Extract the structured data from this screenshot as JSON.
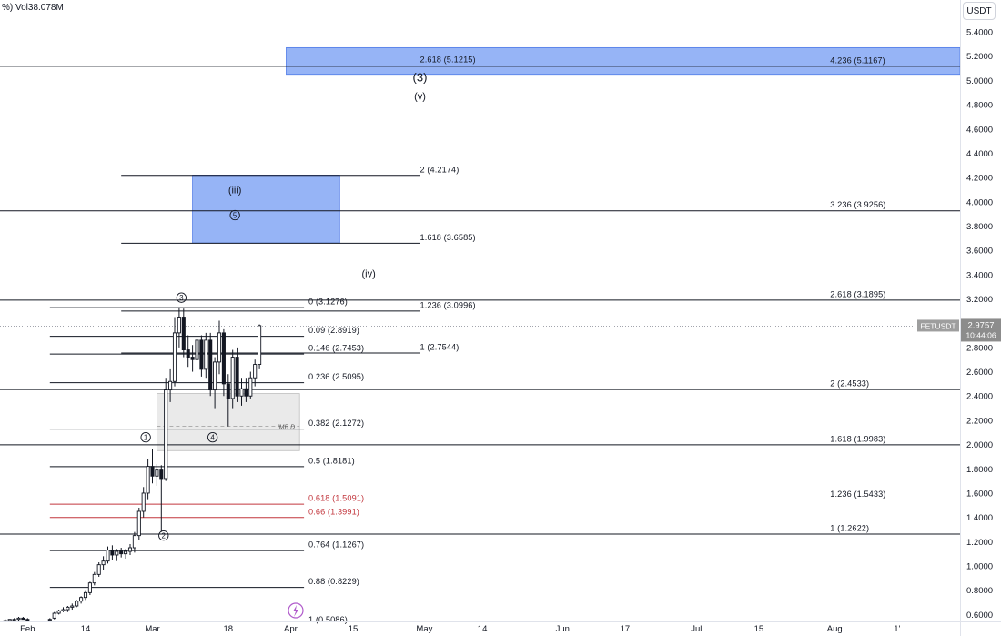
{
  "header": {
    "volume": "%) Vol38.078M",
    "currency": "USDT"
  },
  "colors": {
    "candle": "#131722",
    "line": "#131722",
    "red_line": "#c2363d",
    "blue_zone": "#6e97f2",
    "gray_zone": "#d9d9d9",
    "price_label_bg": "#8c8c8c",
    "axis_text": "#131722"
  },
  "chart_data": {
    "type": "candlestick",
    "symbol": "FETUSDT",
    "last_price": "2.9757",
    "countdown": "10:44:06",
    "ylim": [
      0.55,
      5.42
    ],
    "y_ticks": [
      "5.4000",
      "5.2000",
      "5.0000",
      "4.8000",
      "4.6000",
      "4.4000",
      "4.2000",
      "4.0000",
      "3.8000",
      "3.6000",
      "3.4000",
      "3.2000",
      "3.0000",
      "2.8000",
      "2.6000",
      "2.4000",
      "2.2000",
      "2.0000",
      "1.8000",
      "1.6000",
      "1.4000",
      "1.2000",
      "1.0000",
      "0.8000",
      "0.6000"
    ],
    "x_ticks": [
      {
        "day": 4,
        "label": "Feb"
      },
      {
        "day": 17,
        "label": "14"
      },
      {
        "day": 32,
        "label": "Mar"
      },
      {
        "day": 49,
        "label": "18"
      },
      {
        "day": 63,
        "label": "Apr"
      },
      {
        "day": 77,
        "label": "15"
      },
      {
        "day": 93,
        "label": "May"
      },
      {
        "day": 106,
        "label": "14"
      },
      {
        "day": 124,
        "label": "Jun"
      },
      {
        "day": 138,
        "label": "17"
      },
      {
        "day": 154,
        "label": "Jul"
      },
      {
        "day": 168,
        "label": "15"
      },
      {
        "day": 185,
        "label": "Aug"
      },
      {
        "day": 199,
        "label": "1'"
      }
    ],
    "candles": [
      [
        -1,
        0.55,
        0.56,
        0.54,
        0.55
      ],
      [
        0,
        0.55,
        0.56,
        0.54,
        0.56
      ],
      [
        1,
        0.56,
        0.57,
        0.55,
        0.56
      ],
      [
        2,
        0.56,
        0.58,
        0.55,
        0.57
      ],
      [
        3,
        0.57,
        0.58,
        0.56,
        0.56
      ],
      [
        4,
        0.56,
        0.57,
        0.54,
        0.55
      ],
      [
        9,
        0.56,
        0.57,
        0.55,
        0.56
      ],
      [
        10,
        0.57,
        0.62,
        0.56,
        0.61
      ],
      [
        11,
        0.61,
        0.64,
        0.6,
        0.63
      ],
      [
        12,
        0.63,
        0.66,
        0.62,
        0.64
      ],
      [
        13,
        0.64,
        0.67,
        0.62,
        0.66
      ],
      [
        14,
        0.66,
        0.69,
        0.64,
        0.67
      ],
      [
        15,
        0.67,
        0.72,
        0.66,
        0.71
      ],
      [
        16,
        0.71,
        0.75,
        0.69,
        0.74
      ],
      [
        17,
        0.74,
        0.8,
        0.72,
        0.78
      ],
      [
        18,
        0.78,
        0.87,
        0.76,
        0.86
      ],
      [
        19,
        0.86,
        0.95,
        0.84,
        0.93
      ],
      [
        20,
        0.93,
        1.03,
        0.91,
        1.01
      ],
      [
        21,
        1.01,
        1.08,
        0.97,
        1.04
      ],
      [
        22,
        1.04,
        1.16,
        1.02,
        1.13
      ],
      [
        23,
        1.13,
        1.17,
        1.05,
        1.09
      ],
      [
        24,
        1.09,
        1.14,
        1.04,
        1.12
      ],
      [
        25,
        1.12,
        1.15,
        1.07,
        1.1
      ],
      [
        26,
        1.1,
        1.14,
        1.06,
        1.12
      ],
      [
        27,
        1.12,
        1.18,
        1.09,
        1.15
      ],
      [
        28,
        1.15,
        1.28,
        1.11,
        1.25
      ],
      [
        29,
        1.25,
        1.48,
        1.21,
        1.45
      ],
      [
        30,
        1.45,
        1.65,
        1.4,
        1.6
      ],
      [
        31,
        1.6,
        1.88,
        1.55,
        1.82
      ],
      [
        32,
        1.82,
        1.96,
        1.68,
        1.74
      ],
      [
        33,
        1.74,
        1.84,
        1.66,
        1.79
      ],
      [
        34,
        1.79,
        1.83,
        1.28,
        1.72
      ],
      [
        35,
        1.72,
        2.55,
        1.7,
        2.45
      ],
      [
        36,
        2.45,
        2.62,
        2.35,
        2.52
      ],
      [
        37,
        2.52,
        3.05,
        2.48,
        2.92
      ],
      [
        38,
        2.92,
        3.13,
        2.8,
        3.05
      ],
      [
        39,
        3.05,
        3.12,
        2.72,
        2.78
      ],
      [
        40,
        2.78,
        2.9,
        2.64,
        2.72
      ],
      [
        41,
        2.72,
        2.82,
        2.6,
        2.7
      ],
      [
        42,
        2.7,
        2.92,
        2.62,
        2.86
      ],
      [
        43,
        2.86,
        2.9,
        2.56,
        2.62
      ],
      [
        44,
        2.62,
        2.92,
        2.55,
        2.86
      ],
      [
        45,
        2.86,
        2.92,
        2.4,
        2.45
      ],
      [
        46,
        2.45,
        2.72,
        2.3,
        2.68
      ],
      [
        47,
        2.68,
        3.02,
        2.58,
        2.92
      ],
      [
        48,
        2.92,
        2.95,
        2.4,
        2.5
      ],
      [
        49,
        2.5,
        2.58,
        2.15,
        2.38
      ],
      [
        50,
        2.38,
        2.78,
        2.3,
        2.72
      ],
      [
        51,
        2.72,
        2.8,
        2.35,
        2.4
      ],
      [
        52,
        2.4,
        2.55,
        2.32,
        2.46
      ],
      [
        53,
        2.46,
        2.55,
        2.35,
        2.4
      ],
      [
        54,
        2.4,
        2.6,
        2.38,
        2.55
      ],
      [
        55,
        2.55,
        2.7,
        2.48,
        2.66
      ],
      [
        56,
        2.66,
        2.99,
        2.62,
        2.98
      ]
    ],
    "levels": [
      {
        "d1": -4,
        "d2": 215,
        "y": 5.1167,
        "color": "line"
      },
      {
        "d1": 25,
        "d2": 92,
        "y": 4.2174,
        "color": "line"
      },
      {
        "d1": -4,
        "d2": 215,
        "y": 3.9256,
        "color": "line"
      },
      {
        "d1": 25,
        "d2": 92,
        "y": 3.6585,
        "color": "line"
      },
      {
        "d1": -4,
        "d2": 215,
        "y": 3.1895,
        "color": "line"
      },
      {
        "d1": 9,
        "d2": 66,
        "y": 3.1276,
        "color": "line"
      },
      {
        "d1": 25,
        "d2": 92,
        "y": 3.0996,
        "color": "line"
      },
      {
        "d1": 9,
        "d2": 66,
        "y": 2.8919,
        "color": "line"
      },
      {
        "d1": 9,
        "d2": 66,
        "y": 2.7453,
        "color": "line"
      },
      {
        "d1": 25,
        "d2": 92,
        "y": 2.7544,
        "color": "line"
      },
      {
        "d1": 9,
        "d2": 66,
        "y": 2.5095,
        "color": "line"
      },
      {
        "d1": -4,
        "d2": 215,
        "y": 2.4533,
        "color": "line"
      },
      {
        "d1": 9,
        "d2": 66,
        "y": 2.1272,
        "color": "line"
      },
      {
        "d1": -4,
        "d2": 215,
        "y": 1.9983,
        "color": "line"
      },
      {
        "d1": 9,
        "d2": 66,
        "y": 1.8181,
        "color": "line"
      },
      {
        "d1": -4,
        "d2": 215,
        "y": 1.5433,
        "color": "line"
      },
      {
        "d1": 9,
        "d2": 66,
        "y": 1.5091,
        "color": "red_line"
      },
      {
        "d1": 9,
        "d2": 66,
        "y": 1.3991,
        "color": "red_line"
      },
      {
        "d1": -4,
        "d2": 215,
        "y": 1.2622,
        "color": "line"
      },
      {
        "d1": 9,
        "d2": 66,
        "y": 1.1267,
        "color": "line"
      },
      {
        "d1": 9,
        "d2": 66,
        "y": 0.8229,
        "color": "line"
      }
    ],
    "zones": [
      {
        "d1": 62,
        "d2": 215,
        "y1": 5.05,
        "y2": 5.27,
        "color": "blue_zone"
      },
      {
        "d1": 41,
        "d2": 74,
        "y1": 3.66,
        "y2": 4.22,
        "color": "blue_zone"
      },
      {
        "d1": 33,
        "d2": 65,
        "y1": 1.95,
        "y2": 2.42,
        "color": "gray_zone"
      }
    ],
    "level_labels": [
      {
        "d": 92,
        "y": 5.1215,
        "text": "2.618 (5.1215)"
      },
      {
        "d": 184,
        "y": 5.1167,
        "text": "4.236 (5.1167)"
      },
      {
        "d": 92,
        "y": 4.2174,
        "text": "2 (4.2174)"
      },
      {
        "d": 184,
        "y": 3.9256,
        "text": "3.236 (3.9256)"
      },
      {
        "d": 92,
        "y": 3.6585,
        "text": "1.618 (3.6585)"
      },
      {
        "d": 184,
        "y": 3.1895,
        "text": "2.618 (3.1895)"
      },
      {
        "d": 67,
        "y": 3.1276,
        "text": "0 (3.1276)"
      },
      {
        "d": 92,
        "y": 3.0996,
        "text": "1.236 (3.0996)"
      },
      {
        "d": 67,
        "y": 2.8919,
        "text": "0.09 (2.8919)"
      },
      {
        "d": 67,
        "y": 2.7453,
        "text": "0.146 (2.7453)"
      },
      {
        "d": 92,
        "y": 2.7544,
        "text": "1 (2.7544)"
      },
      {
        "d": 67,
        "y": 2.5095,
        "text": "0.236 (2.5095)"
      },
      {
        "d": 184,
        "y": 2.4533,
        "text": "2 (2.4533)"
      },
      {
        "d": 67,
        "y": 2.1272,
        "text": "0.382 (2.1272)"
      },
      {
        "d": 184,
        "y": 1.9983,
        "text": "1.618 (1.9983)"
      },
      {
        "d": 67,
        "y": 1.8181,
        "text": "0.5 (1.8181)"
      },
      {
        "d": 184,
        "y": 1.5433,
        "text": "1.236 (1.5433)"
      },
      {
        "d": 67,
        "y": 1.5091,
        "text": "0.618 (1.5091)",
        "color": "red_line"
      },
      {
        "d": 67,
        "y": 1.3991,
        "text": "0.66 (1.3991)",
        "color": "red_line"
      },
      {
        "d": 184,
        "y": 1.2622,
        "text": "1 (1.2622)"
      },
      {
        "d": 67,
        "y": 1.1267,
        "text": "0.764 (1.1267)"
      },
      {
        "d": 67,
        "y": 0.8229,
        "text": "0.88 (0.8229)"
      },
      {
        "d": 67,
        "y": 0.5086,
        "text": "1 (0.5086)"
      }
    ],
    "wave_labels": [
      {
        "d": 92,
        "y": 5.02,
        "text": "(3)",
        "circled": false
      },
      {
        "d": 92,
        "y": 4.87,
        "text": "(v)",
        "circled": false
      },
      {
        "d": 50.5,
        "y": 4.1,
        "text": "(iii)",
        "circled": false
      },
      {
        "d": 80.5,
        "y": 3.41,
        "text": "(iv)",
        "circled": false
      },
      {
        "d": 50.5,
        "y": 3.89,
        "text": "5",
        "circled": true
      },
      {
        "d": 38.5,
        "y": 3.21,
        "text": "3",
        "circled": true
      },
      {
        "d": 30.5,
        "y": 2.06,
        "text": "1",
        "circled": true
      },
      {
        "d": 45.5,
        "y": 2.06,
        "text": "4",
        "circled": true
      },
      {
        "d": 34.5,
        "y": 1.25,
        "text": "2",
        "circled": true
      }
    ],
    "annotations": [
      {
        "d": 60,
        "y": 2.15,
        "text": "IMB D"
      }
    ]
  }
}
